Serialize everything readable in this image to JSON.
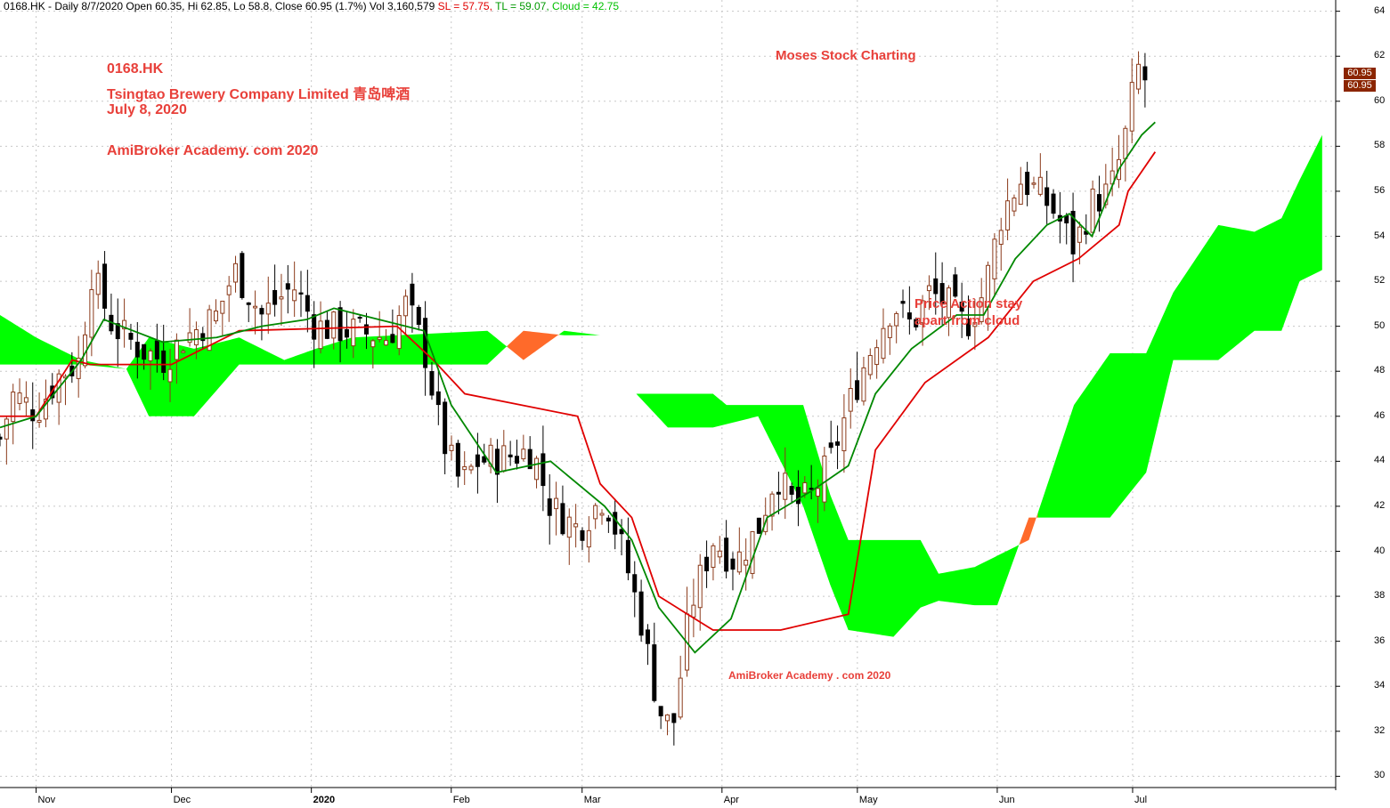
{
  "header": {
    "text": "0168.HK - Daily 8/7/2020 Open 60.35, Hi 62.85, Lo 58.8, Close 60.95 (1.7%) Vol 3,160,579",
    "sl_text": "SL = 57.75,",
    "tl_text": "TL = 59.07,",
    "cloud_text": "Cloud = 42.75"
  },
  "annotations": {
    "symbol": "0168.HK",
    "company": "Tsingtao Brewery Company Limited 青岛啤酒",
    "date": "July 8, 2020",
    "site": "AmiBroker Academy. com 2020",
    "moses": "Moses Stock Charting",
    "price_action": "Price Action stay apart from cloud",
    "watermark": "AmiBroker Academy . com  2020"
  },
  "colors": {
    "background": "#ffffff",
    "grid": "#c8c8c8",
    "cloud_bull": "#00ff00",
    "cloud_bear": "#ff6a2a",
    "sl_line": "#e00000",
    "tl_line": "#008800",
    "candle_up_body": "#ffffff",
    "candle_up_border": "#8b3a1a",
    "candle_down": "#000000",
    "annotation": "#e8403a",
    "last_badge": "#8b2500"
  },
  "chart_data": {
    "type": "candlestick",
    "title": "",
    "y_axis_side": "right",
    "ylim": [
      29.5,
      64.5
    ],
    "y_ticks": [
      30,
      32,
      34,
      36,
      38,
      40,
      42,
      44,
      46,
      48,
      50,
      52,
      54,
      56,
      58,
      60,
      62,
      64
    ],
    "x_ticks": [
      {
        "label": "Nov",
        "day": 0
      },
      {
        "label": "Dec",
        "day": 30
      },
      {
        "label": "2020",
        "day": 61,
        "bold": true
      },
      {
        "label": "Feb",
        "day": 92
      },
      {
        "label": "Mar",
        "day": 121
      },
      {
        "label": "Apr",
        "day": 152
      },
      {
        "label": "May",
        "day": 182
      },
      {
        "label": "Jun",
        "day": 213
      },
      {
        "label": "Jul",
        "day": 243
      }
    ],
    "xlim": [
      -8,
      288
    ],
    "last_close_labels": [
      "60.95",
      "60.95"
    ],
    "last_close": 60.95,
    "candles_knots": [
      {
        "d": -8,
        "c": 45.0
      },
      {
        "d": -5,
        "c": 47.0
      },
      {
        "d": 0,
        "c": 46.2
      },
      {
        "d": 5,
        "c": 47.8
      },
      {
        "d": 10,
        "c": 48.5
      },
      {
        "d": 12,
        "c": 52.5
      },
      {
        "d": 17,
        "c": 50.0
      },
      {
        "d": 23,
        "c": 49.0
      },
      {
        "d": 28,
        "c": 48.5
      },
      {
        "d": 33,
        "c": 49.5
      },
      {
        "d": 40,
        "c": 50.5
      },
      {
        "d": 44,
        "c": 52.5
      },
      {
        "d": 50,
        "c": 50.5
      },
      {
        "d": 57,
        "c": 51.8
      },
      {
        "d": 62,
        "c": 50.0
      },
      {
        "d": 70,
        "c": 49.8
      },
      {
        "d": 78,
        "c": 49.5
      },
      {
        "d": 82,
        "c": 51.0
      },
      {
        "d": 86,
        "c": 49.0
      },
      {
        "d": 90,
        "c": 45.0
      },
      {
        "d": 94,
        "c": 43.0
      },
      {
        "d": 98,
        "c": 44.0
      },
      {
        "d": 104,
        "c": 44.2
      },
      {
        "d": 110,
        "c": 44.5
      },
      {
        "d": 114,
        "c": 42.0
      },
      {
        "d": 120,
        "c": 41.0
      },
      {
        "d": 126,
        "c": 42.5
      },
      {
        "d": 130,
        "c": 40.0
      },
      {
        "d": 134,
        "c": 37.0
      },
      {
        "d": 138,
        "c": 33.0
      },
      {
        "d": 141,
        "c": 32.0
      },
      {
        "d": 145,
        "c": 37.5
      },
      {
        "d": 150,
        "c": 40.5
      },
      {
        "d": 155,
        "c": 39.5
      },
      {
        "d": 160,
        "c": 41.0
      },
      {
        "d": 164,
        "c": 43.5
      },
      {
        "d": 168,
        "c": 42.0
      },
      {
        "d": 172,
        "c": 42.5
      },
      {
        "d": 176,
        "c": 44.0
      },
      {
        "d": 181,
        "c": 47.0
      },
      {
        "d": 186,
        "c": 49.5
      },
      {
        "d": 190,
        "c": 51.0
      },
      {
        "d": 194,
        "c": 50.0
      },
      {
        "d": 198,
        "c": 51.5
      },
      {
        "d": 202,
        "c": 51.0
      },
      {
        "d": 206,
        "c": 50.0
      },
      {
        "d": 210,
        "c": 51.5
      },
      {
        "d": 214,
        "c": 55.0
      },
      {
        "d": 218,
        "c": 56.5
      },
      {
        "d": 222,
        "c": 56.0
      },
      {
        "d": 226,
        "c": 55.0
      },
      {
        "d": 230,
        "c": 53.5
      },
      {
        "d": 234,
        "c": 55.5
      },
      {
        "d": 238,
        "c": 56.0
      },
      {
        "d": 241,
        "c": 58.0
      },
      {
        "d": 244,
        "c": 61.5
      },
      {
        "d": 247,
        "c": 60.95
      }
    ],
    "sl_line": [
      {
        "d": -8,
        "c": 46.0
      },
      {
        "d": 0,
        "c": 46.0
      },
      {
        "d": 8,
        "c": 48.5
      },
      {
        "d": 12,
        "c": 48.3
      },
      {
        "d": 30,
        "c": 48.3
      },
      {
        "d": 45,
        "c": 49.8
      },
      {
        "d": 80,
        "c": 50.0
      },
      {
        "d": 88,
        "c": 48.5
      },
      {
        "d": 95,
        "c": 47.0
      },
      {
        "d": 120,
        "c": 46.0
      },
      {
        "d": 125,
        "c": 43.0
      },
      {
        "d": 132,
        "c": 41.5
      },
      {
        "d": 138,
        "c": 38.0
      },
      {
        "d": 150,
        "c": 36.5
      },
      {
        "d": 165,
        "c": 36.5
      },
      {
        "d": 180,
        "c": 37.2
      },
      {
        "d": 186,
        "c": 44.5
      },
      {
        "d": 197,
        "c": 47.5
      },
      {
        "d": 211,
        "c": 49.5
      },
      {
        "d": 221,
        "c": 52.0
      },
      {
        "d": 231,
        "c": 53.0
      },
      {
        "d": 240,
        "c": 54.5
      },
      {
        "d": 242,
        "c": 56.0
      },
      {
        "d": 248,
        "c": 57.75
      }
    ],
    "tl_line": [
      {
        "d": -8,
        "c": 45.5
      },
      {
        "d": 0,
        "c": 46.0
      },
      {
        "d": 10,
        "c": 48.5
      },
      {
        "d": 15,
        "c": 50.3
      },
      {
        "d": 28,
        "c": 49.3
      },
      {
        "d": 40,
        "c": 49.5
      },
      {
        "d": 50,
        "c": 50.0
      },
      {
        "d": 60,
        "c": 50.3
      },
      {
        "d": 66,
        "c": 50.8
      },
      {
        "d": 86,
        "c": 49.8
      },
      {
        "d": 92,
        "c": 46.5
      },
      {
        "d": 102,
        "c": 43.5
      },
      {
        "d": 114,
        "c": 44.0
      },
      {
        "d": 126,
        "c": 42.0
      },
      {
        "d": 132,
        "c": 40.5
      },
      {
        "d": 138,
        "c": 37.5
      },
      {
        "d": 146,
        "c": 35.5
      },
      {
        "d": 154,
        "c": 37.0
      },
      {
        "d": 162,
        "c": 41.5
      },
      {
        "d": 172,
        "c": 42.7
      },
      {
        "d": 180,
        "c": 43.8
      },
      {
        "d": 186,
        "c": 47.0
      },
      {
        "d": 194,
        "c": 49.0
      },
      {
        "d": 204,
        "c": 50.5
      },
      {
        "d": 210,
        "c": 50.5
      },
      {
        "d": 217,
        "c": 53.0
      },
      {
        "d": 224,
        "c": 54.5
      },
      {
        "d": 229,
        "c": 55.0
      },
      {
        "d": 234,
        "c": 54.0
      },
      {
        "d": 240,
        "c": 57.0
      },
      {
        "d": 245,
        "c": 58.5
      },
      {
        "d": 248,
        "c": 59.07
      }
    ],
    "cloud": {
      "span_a": [
        {
          "d": -8,
          "c": 50.5
        },
        {
          "d": 0,
          "c": 49.5
        },
        {
          "d": 10,
          "c": 48.5
        },
        {
          "d": 20,
          "c": 48.1
        },
        {
          "d": 25,
          "c": 49.5
        },
        {
          "d": 35,
          "c": 49.0
        },
        {
          "d": 45,
          "c": 49.5
        },
        {
          "d": 55,
          "c": 48.5
        },
        {
          "d": 62,
          "c": 49.0
        },
        {
          "d": 70,
          "c": 49.5
        },
        {
          "d": 80,
          "c": 49.6
        },
        {
          "d": 100,
          "c": 49.8
        },
        {
          "d": 108,
          "c": 48.5
        },
        {
          "d": 117,
          "c": 49.8
        },
        {
          "d": 125,
          "c": 49.6
        },
        {
          "d": 133,
          "c": 47.0
        },
        {
          "d": 150,
          "c": 47.0
        },
        {
          "d": 153,
          "c": 46.5
        },
        {
          "d": 170,
          "c": 46.5
        },
        {
          "d": 176,
          "c": 42.5
        },
        {
          "d": 180,
          "c": 40.5
        },
        {
          "d": 196,
          "c": 40.5
        },
        {
          "d": 200,
          "c": 39.0
        },
        {
          "d": 208,
          "c": 39.3
        },
        {
          "d": 213,
          "c": 39.8
        },
        {
          "d": 220,
          "c": 40.5
        },
        {
          "d": 230,
          "c": 46.5
        },
        {
          "d": 238,
          "c": 48.8
        },
        {
          "d": 246,
          "c": 48.8
        },
        {
          "d": 252,
          "c": 51.5
        },
        {
          "d": 262,
          "c": 54.5
        },
        {
          "d": 270,
          "c": 54.2
        },
        {
          "d": 276,
          "c": 54.8
        },
        {
          "d": 280,
          "c": 56.5
        },
        {
          "d": 285,
          "c": 58.5
        }
      ],
      "span_b": [
        {
          "d": -8,
          "c": 48.3
        },
        {
          "d": 10,
          "c": 48.3
        },
        {
          "d": 20,
          "c": 48.1
        },
        {
          "d": 25,
          "c": 46.0
        },
        {
          "d": 35,
          "c": 46.0
        },
        {
          "d": 45,
          "c": 48.3
        },
        {
          "d": 100,
          "c": 48.3
        },
        {
          "d": 108,
          "c": 49.8
        },
        {
          "d": 117,
          "c": 49.6
        },
        {
          "d": 125,
          "c": 49.6
        },
        {
          "d": 133,
          "c": 47.0
        },
        {
          "d": 140,
          "c": 45.5
        },
        {
          "d": 150,
          "c": 45.5
        },
        {
          "d": 160,
          "c": 46.0
        },
        {
          "d": 170,
          "c": 42.0
        },
        {
          "d": 176,
          "c": 38.5
        },
        {
          "d": 180,
          "c": 36.5
        },
        {
          "d": 190,
          "c": 36.2
        },
        {
          "d": 196,
          "c": 37.5
        },
        {
          "d": 200,
          "c": 37.8
        },
        {
          "d": 208,
          "c": 37.6
        },
        {
          "d": 213,
          "c": 37.6
        },
        {
          "d": 220,
          "c": 41.5
        },
        {
          "d": 238,
          "c": 41.5
        },
        {
          "d": 246,
          "c": 43.5
        },
        {
          "d": 252,
          "c": 48.5
        },
        {
          "d": 262,
          "c": 48.5
        },
        {
          "d": 270,
          "c": 49.8
        },
        {
          "d": 276,
          "c": 49.8
        },
        {
          "d": 280,
          "c": 52.0
        },
        {
          "d": 285,
          "c": 52.5
        }
      ]
    }
  }
}
